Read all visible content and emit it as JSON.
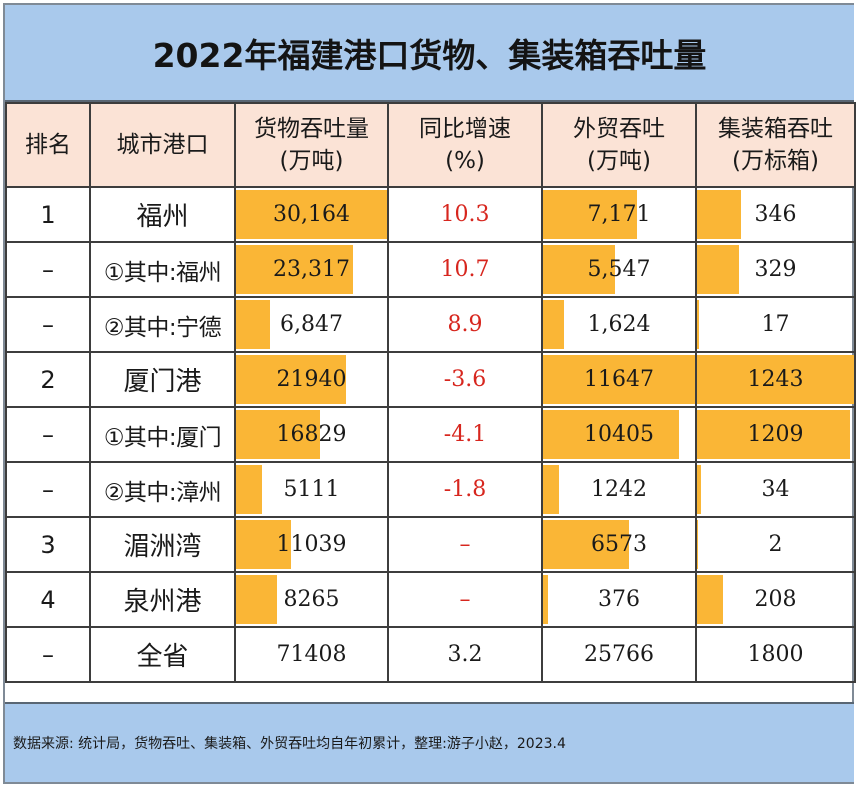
{
  "title": "2022年福建港口货物、集装箱吞吐量",
  "headers": {
    "rank": "排名",
    "port": "城市港口",
    "cargo_l1": "货物吞吐量",
    "cargo_l2": "(万吨)",
    "growth_l1": "同比增速",
    "growth_l2": "(%)",
    "trade_l1": "外贸吞吐",
    "trade_l2": "(万吨)",
    "container_l1": "集装箱吞吐",
    "container_l2": "(万标箱)"
  },
  "colors": {
    "bar": "#fab636",
    "negative_text": "#d7261e",
    "title_bg": "#a9c9ec",
    "header_bg": "#fbe3d6"
  },
  "chart_data": {
    "type": "table",
    "title": "2022年福建港口货物、集装箱吞吐量",
    "columns": [
      "排名",
      "城市港口",
      "货物吞吐量(万吨)",
      "同比增速(%)",
      "外贸吞吐(万吨)",
      "集装箱吞吐(万标箱)"
    ],
    "rows": [
      {
        "rank": "1",
        "port": "福州",
        "cargo": "30,164",
        "growth": "10.3",
        "trade": "7,171",
        "container": "346",
        "cargo_v": 30164,
        "trade_v": 7171,
        "container_v": 346,
        "growth_red": true
      },
      {
        "rank": "–",
        "port": "①其中:福州",
        "cargo": "23,317",
        "growth": "10.7",
        "trade": "5,547",
        "container": "329",
        "cargo_v": 23317,
        "trade_v": 5547,
        "container_v": 329,
        "growth_red": true
      },
      {
        "rank": "–",
        "port": "②其中:宁德",
        "cargo": "6,847",
        "growth": "8.9",
        "trade": "1,624",
        "container": "17",
        "cargo_v": 6847,
        "trade_v": 1624,
        "container_v": 17,
        "growth_red": true
      },
      {
        "rank": "2",
        "port": "厦门港",
        "cargo": "21940",
        "growth": "-3.6",
        "trade": "11647",
        "container": "1243",
        "cargo_v": 21940,
        "trade_v": 11647,
        "container_v": 1243,
        "growth_red": true
      },
      {
        "rank": "–",
        "port": "①其中:厦门",
        "cargo": "16829",
        "growth": "-4.1",
        "trade": "10405",
        "container": "1209",
        "cargo_v": 16829,
        "trade_v": 10405,
        "container_v": 1209,
        "growth_red": true
      },
      {
        "rank": "–",
        "port": "②其中:漳州",
        "cargo": "5111",
        "growth": "-1.8",
        "trade": "1242",
        "container": "34",
        "cargo_v": 5111,
        "trade_v": 1242,
        "container_v": 34,
        "growth_red": true
      },
      {
        "rank": "3",
        "port": "湄洲湾",
        "cargo": "11039",
        "growth": "–",
        "trade": "6573",
        "container": "2",
        "cargo_v": 11039,
        "trade_v": 6573,
        "container_v": 2,
        "growth_red": true
      },
      {
        "rank": "4",
        "port": "泉州港",
        "cargo": "8265",
        "growth": "–",
        "trade": "376",
        "container": "208",
        "cargo_v": 8265,
        "trade_v": 376,
        "container_v": 208,
        "growth_red": true
      },
      {
        "rank": "–",
        "port": "全省",
        "cargo": "71408",
        "growth": "3.2",
        "trade": "25766",
        "container": "1800",
        "growth_red": false
      }
    ],
    "bar_max": {
      "cargo": 30164,
      "trade": 11647,
      "container": 1243
    }
  },
  "footer": "数据来源: 统计局，货物吞吐、集装箱、外贸吞吐均自年初累计，整理:游子小赵，2023.4"
}
